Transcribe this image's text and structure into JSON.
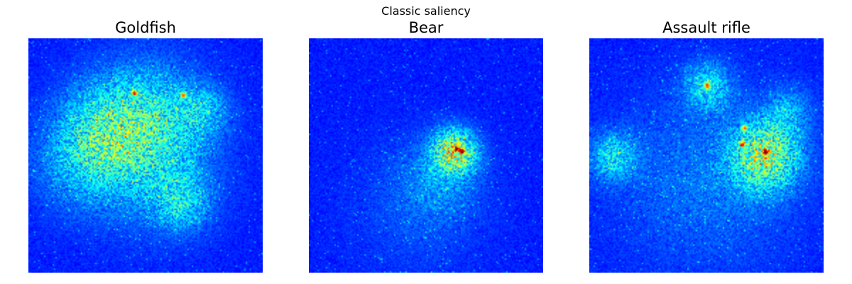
{
  "figure": {
    "title": "Classic saliency"
  },
  "panels": [
    {
      "title": "Goldfish",
      "colormap": "jet"
    },
    {
      "title": "Bear",
      "colormap": "jet"
    },
    {
      "title": "Assault rifle",
      "colormap": "jet"
    }
  ]
}
